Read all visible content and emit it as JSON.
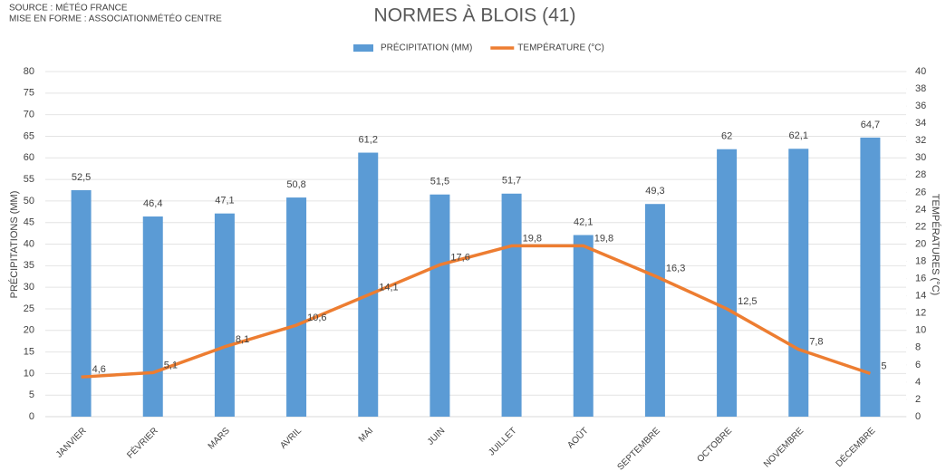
{
  "chart_data": {
    "type": "bar-line",
    "title": "NORMES À BLOIS (41)",
    "annotations": [
      "SOURCE : MÉTÉO FRANCE",
      "MISE EN FORME : ASSOCIATIONMÉTÉO CENTRE"
    ],
    "ylabel": "PRÉCIPITATIONS (MM)",
    "y2label": "TEMPÉRATURES (°C)",
    "categories": [
      "JANVIER",
      "FÉVRIER",
      "MARS",
      "AVRIL",
      "MAI",
      "JUIN",
      "JUILLET",
      "AOÛT",
      "SEPTEMBRE",
      "OCTOBRE",
      "NOVEMBRE",
      "DÉCEMBRE"
    ],
    "series": [
      {
        "name": "PRÉCIPITATION (MM)",
        "type": "bar",
        "color": "#5b9bd5",
        "values": [
          52.5,
          46.4,
          47.1,
          50.8,
          61.2,
          51.5,
          51.7,
          42.1,
          49.3,
          62,
          62.1,
          64.7
        ],
        "value_labels": [
          "52,5",
          "46,4",
          "47,1",
          "50,8",
          "61,2",
          "51,5",
          "51,7",
          "42,1",
          "49,3",
          "62",
          "62,1",
          "64,7"
        ]
      },
      {
        "name": "TEMPÉRATURE (°C)",
        "type": "line",
        "axis": "y2",
        "color": "#ed7d31",
        "values": [
          4.6,
          5.1,
          8.1,
          10.6,
          14.1,
          17.6,
          19.8,
          19.8,
          16.3,
          12.5,
          7.8,
          5
        ],
        "value_labels": [
          "4,6",
          "5,1",
          "8,1",
          "10,6",
          "14,1",
          "17,6",
          "19,8",
          "19,8",
          "16,3",
          "12,5",
          "7,8",
          "5"
        ]
      }
    ],
    "ylim": [
      0,
      80
    ],
    "yticks": [
      0,
      5,
      10,
      15,
      20,
      25,
      30,
      35,
      40,
      45,
      50,
      55,
      60,
      65,
      70,
      75,
      80
    ],
    "y2lim": [
      0,
      40
    ],
    "y2ticks": [
      0,
      2,
      4,
      6,
      8,
      10,
      12,
      14,
      16,
      18,
      20,
      22,
      24,
      26,
      28,
      30,
      32,
      34,
      36,
      38,
      40
    ],
    "grid": true,
    "legend": "top"
  }
}
